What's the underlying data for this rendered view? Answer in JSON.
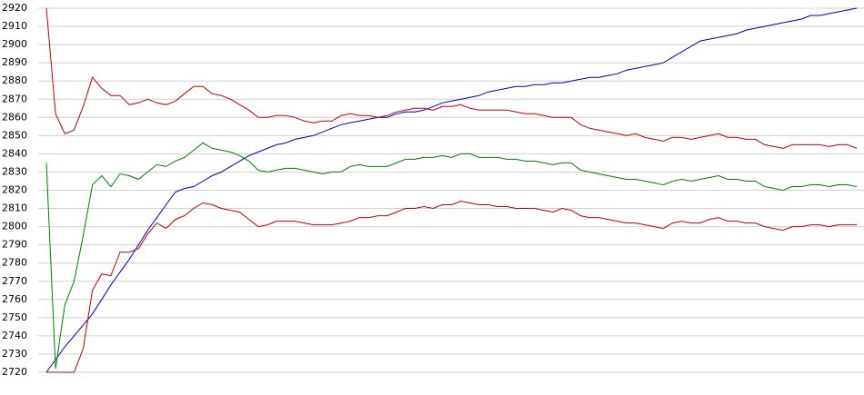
{
  "chart_data": {
    "type": "line",
    "ylim": [
      2720,
      2920
    ],
    "yticks": [
      2720,
      2730,
      2740,
      2750,
      2760,
      2770,
      2780,
      2790,
      2800,
      2810,
      2820,
      2830,
      2840,
      2850,
      2860,
      2870,
      2880,
      2890,
      2900,
      2910,
      2920
    ],
    "grid": true,
    "series": [
      {
        "color": "#0000b0",
        "values": [
          2720,
          2727,
          2734,
          2740,
          2746,
          2752,
          2760,
          2768,
          2775,
          2782,
          2790,
          2798,
          2805,
          2812,
          2819,
          2821,
          2822,
          2825,
          2828,
          2830,
          2833,
          2836,
          2839,
          2841,
          2843,
          2845,
          2846,
          2848,
          2849,
          2850,
          2852,
          2854,
          2856,
          2857,
          2858,
          2859,
          2860,
          2860,
          2862,
          2863,
          2863,
          2864,
          2866,
          2868,
          2869,
          2870,
          2871,
          2872,
          2874,
          2875,
          2876,
          2877,
          2877,
          2878,
          2878,
          2879,
          2879,
          2880,
          2881,
          2882,
          2882,
          2883,
          2884,
          2886,
          2887,
          2888,
          2889,
          2890,
          2893,
          2896,
          2899,
          2902,
          2903,
          2904,
          2905,
          2906,
          2908,
          2909,
          2910,
          2911,
          2912,
          2913,
          2914,
          2916,
          2916,
          2917,
          2918,
          2919,
          2920
        ]
      },
      {
        "color": "#c00000",
        "values": [
          2920,
          2862,
          2851,
          2853,
          2866,
          2882,
          2876,
          2872,
          2872,
          2867,
          2868,
          2870,
          2868,
          2867,
          2869,
          2873,
          2877,
          2877,
          2873,
          2872,
          2870,
          2867,
          2864,
          2860,
          2860,
          2861,
          2861,
          2860,
          2858,
          2857,
          2858,
          2858,
          2861,
          2862,
          2861,
          2861,
          2860,
          2861,
          2863,
          2864,
          2865,
          2865,
          2864,
          2866,
          2866,
          2867,
          2865,
          2864,
          2864,
          2864,
          2864,
          2863,
          2862,
          2862,
          2861,
          2860,
          2860,
          2860,
          2856,
          2854,
          2853,
          2852,
          2851,
          2850,
          2851,
          2849,
          2848,
          2847,
          2849,
          2849,
          2848,
          2849,
          2850,
          2851,
          2849,
          2849,
          2848,
          2848,
          2845,
          2844,
          2843,
          2845,
          2845,
          2845,
          2845,
          2844,
          2845,
          2845,
          2843
        ]
      },
      {
        "color": "#008000",
        "values": [
          2835,
          2722,
          2757,
          2770,
          2795,
          2823,
          2828,
          2822,
          2829,
          2828,
          2826,
          2830,
          2834,
          2833,
          2836,
          2838,
          2842,
          2846,
          2843,
          2842,
          2841,
          2839,
          2836,
          2831,
          2830,
          2831,
          2832,
          2832,
          2831,
          2830,
          2829,
          2830,
          2830,
          2833,
          2834,
          2833,
          2833,
          2833,
          2835,
          2837,
          2837,
          2838,
          2838,
          2839,
          2838,
          2840,
          2840,
          2838,
          2838,
          2838,
          2837,
          2837,
          2836,
          2836,
          2835,
          2834,
          2835,
          2835,
          2831,
          2830,
          2829,
          2828,
          2827,
          2826,
          2826,
          2825,
          2824,
          2823,
          2825,
          2826,
          2825,
          2826,
          2827,
          2828,
          2826,
          2826,
          2825,
          2825,
          2822,
          2821,
          2820,
          2822,
          2822,
          2823,
          2823,
          2822,
          2823,
          2823,
          2822
        ]
      },
      {
        "color": "#c00000",
        "values": [
          2720,
          2720,
          2720,
          2720,
          2733,
          2765,
          2774,
          2773,
          2786,
          2786,
          2788,
          2796,
          2802,
          2799,
          2804,
          2806,
          2810,
          2813,
          2812,
          2810,
          2809,
          2808,
          2804,
          2800,
          2801,
          2803,
          2803,
          2803,
          2802,
          2801,
          2801,
          2801,
          2802,
          2803,
          2805,
          2805,
          2806,
          2806,
          2808,
          2810,
          2810,
          2811,
          2810,
          2812,
          2812,
          2814,
          2813,
          2812,
          2812,
          2811,
          2811,
          2810,
          2810,
          2810,
          2809,
          2808,
          2810,
          2809,
          2806,
          2805,
          2805,
          2804,
          2803,
          2802,
          2802,
          2801,
          2800,
          2799,
          2802,
          2803,
          2802,
          2802,
          2804,
          2805,
          2803,
          2803,
          2802,
          2802,
          2800,
          2799,
          2798,
          2800,
          2800,
          2801,
          2801,
          2800,
          2801,
          2801,
          2801
        ]
      }
    ]
  }
}
